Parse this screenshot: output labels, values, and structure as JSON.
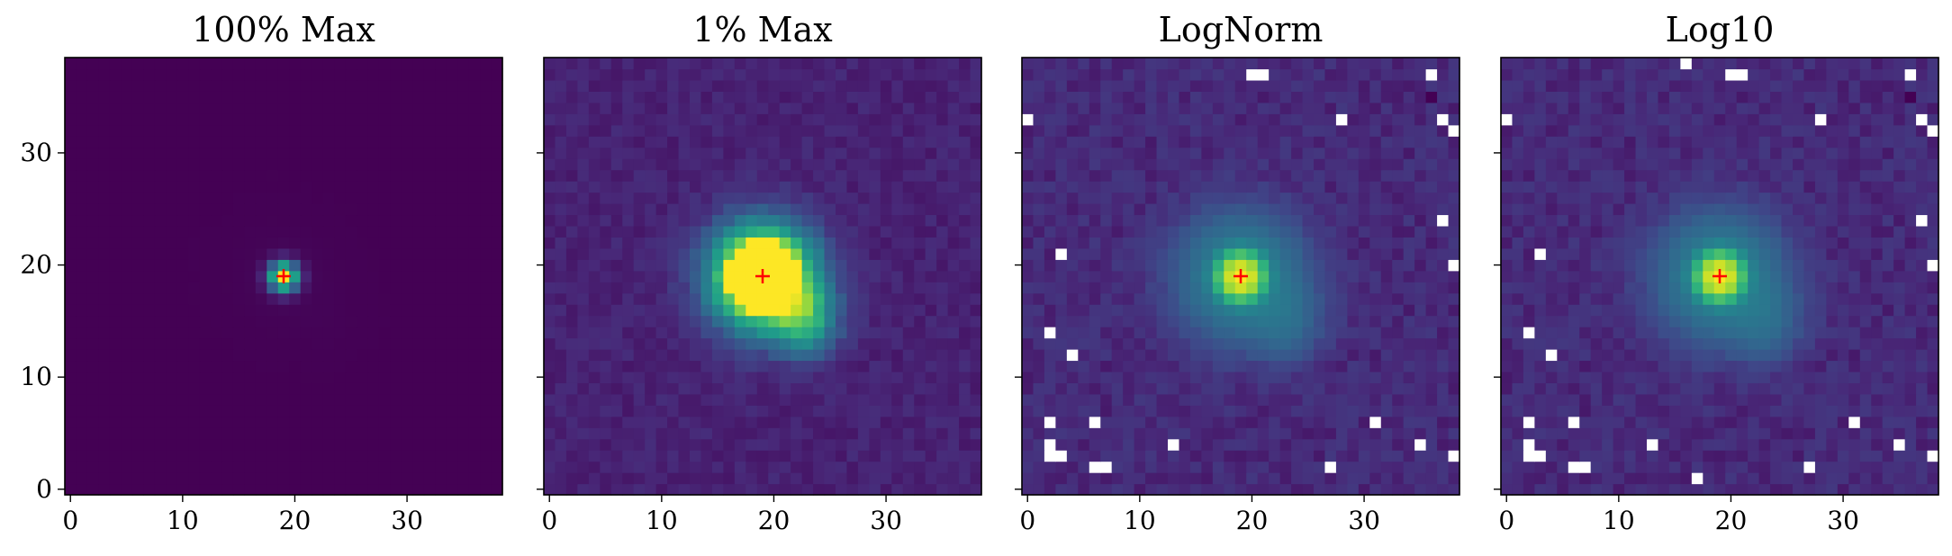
{
  "figure": {
    "panel_titles": [
      "100% Max",
      "1% Max",
      "LogNorm",
      "Log10"
    ]
  },
  "chart_data": [
    {
      "type": "heatmap",
      "title": "100% Max",
      "colormap": "viridis",
      "xlim": [
        -0.5,
        38.5
      ],
      "ylim": [
        -0.5,
        38.5
      ],
      "xticks": [
        0,
        10,
        20,
        30
      ],
      "yticks": [
        0,
        10,
        20,
        30
      ],
      "ytick_labels_shown": true,
      "grid_size": 39,
      "marker": {
        "x": 19,
        "y": 19,
        "symbol": "+",
        "color": "#ff0000"
      },
      "source_peak": {
        "x": 19,
        "y": 19
      },
      "background_color": "#440154"
    },
    {
      "type": "heatmap",
      "title": "1% Max",
      "colormap": "viridis",
      "xlim": [
        -0.5,
        38.5
      ],
      "ylim": [
        -0.5,
        38.5
      ],
      "xticks": [
        0,
        10,
        20,
        30
      ],
      "yticks": [
        0,
        10,
        20,
        30
      ],
      "ytick_labels_shown": false,
      "grid_size": 39,
      "marker": {
        "x": 19,
        "y": 19,
        "symbol": "+",
        "color": "#ff0000"
      },
      "saturated_color": "#fde725"
    },
    {
      "type": "heatmap",
      "title": "LogNorm",
      "colormap": "viridis",
      "xlim": [
        -0.5,
        38.5
      ],
      "ylim": [
        -0.5,
        38.5
      ],
      "xticks": [
        0,
        10,
        20,
        30
      ],
      "yticks": [
        0,
        10,
        20,
        30
      ],
      "ytick_labels_shown": false,
      "grid_size": 39,
      "marker": {
        "x": 19,
        "y": 19,
        "symbol": "+",
        "color": "#ff0000"
      },
      "masked_pixels": [
        [
          20,
          37
        ],
        [
          21,
          37
        ],
        [
          36,
          37
        ],
        [
          0,
          33
        ],
        [
          28,
          33
        ],
        [
          37,
          33
        ],
        [
          38,
          32
        ],
        [
          37,
          24
        ],
        [
          3,
          21
        ],
        [
          38,
          20
        ],
        [
          2,
          14
        ],
        [
          4,
          12
        ],
        [
          2,
          6
        ],
        [
          6,
          6
        ],
        [
          31,
          6
        ],
        [
          2,
          4
        ],
        [
          13,
          4
        ],
        [
          35,
          4
        ],
        [
          2,
          3
        ],
        [
          3,
          3
        ],
        [
          27,
          2
        ],
        [
          6,
          2
        ],
        [
          7,
          2
        ],
        [
          38,
          3
        ]
      ],
      "min_pixel": [
        36,
        35
      ]
    },
    {
      "type": "heatmap",
      "title": "Log10",
      "colormap": "viridis",
      "xlim": [
        -0.5,
        38.5
      ],
      "ylim": [
        -0.5,
        38.5
      ],
      "xticks": [
        0,
        10,
        20,
        30
      ],
      "yticks": [
        0,
        10,
        20,
        30
      ],
      "ytick_labels_shown": false,
      "grid_size": 39,
      "marker": {
        "x": 19,
        "y": 19,
        "symbol": "+",
        "color": "#ff0000"
      },
      "masked_pixels": [
        [
          16,
          38
        ],
        [
          20,
          37
        ],
        [
          21,
          37
        ],
        [
          36,
          37
        ],
        [
          0,
          33
        ],
        [
          28,
          33
        ],
        [
          37,
          33
        ],
        [
          38,
          32
        ],
        [
          37,
          24
        ],
        [
          3,
          21
        ],
        [
          38,
          20
        ],
        [
          2,
          14
        ],
        [
          4,
          12
        ],
        [
          2,
          6
        ],
        [
          6,
          6
        ],
        [
          31,
          6
        ],
        [
          2,
          4
        ],
        [
          13,
          4
        ],
        [
          35,
          4
        ],
        [
          2,
          3
        ],
        [
          3,
          3
        ],
        [
          6,
          2
        ],
        [
          7,
          2
        ],
        [
          17,
          1
        ],
        [
          27,
          2
        ],
        [
          38,
          3
        ]
      ],
      "min_pixel": [
        36,
        35
      ]
    }
  ]
}
